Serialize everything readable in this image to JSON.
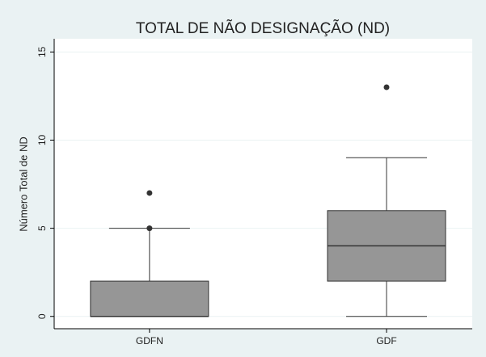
{
  "chart_data": {
    "type": "box",
    "title": "TOTAL DE NÃO DESIGNAÇÃO (ND)",
    "y_label": "Número Total de ND",
    "categories": [
      "GDFN",
      "GDF"
    ],
    "boxes": [
      {
        "min": 0,
        "q1": 0,
        "median": 0,
        "q3": 2,
        "max": 5,
        "outliers": [
          5,
          7
        ]
      },
      {
        "min": 0,
        "q1": 2,
        "median": 4,
        "q3": 6,
        "max": 9,
        "outliers": [
          13
        ]
      }
    ],
    "color": "#969696",
    "ylim": [
      -0.7,
      15.75
    ],
    "yticks": [
      0,
      5,
      10,
      15
    ],
    "grid": true
  }
}
